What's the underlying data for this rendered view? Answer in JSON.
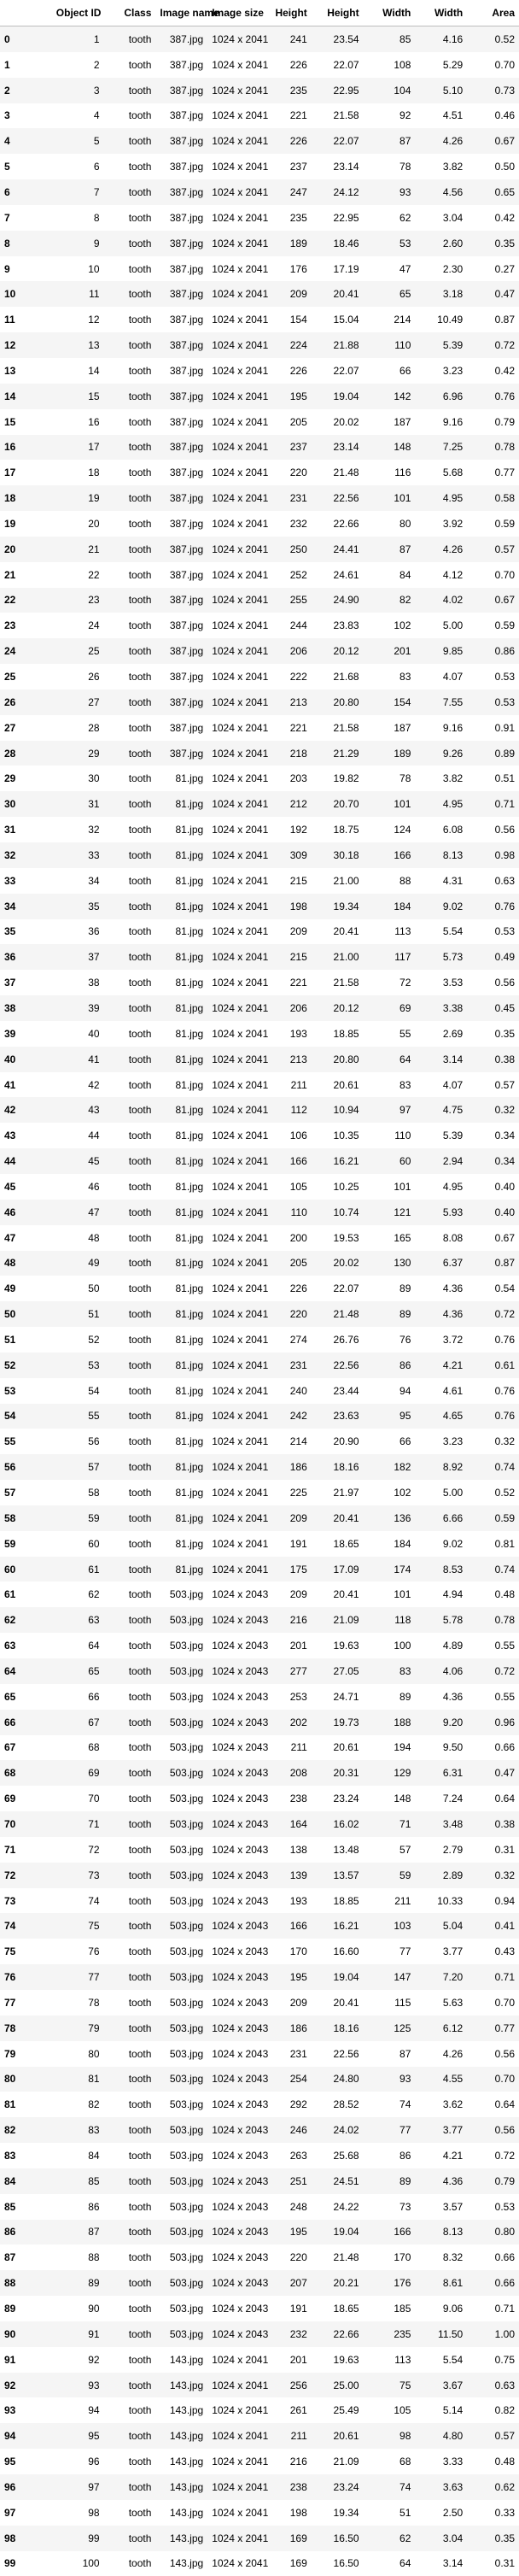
{
  "columns": [
    "",
    "Object ID",
    "Class",
    "Image name",
    "Image size",
    "Height",
    "Height",
    "Width",
    "Width",
    "Area"
  ],
  "rows": [
    [
      "0",
      "1",
      "tooth",
      "387.jpg",
      "1024 x 2041",
      "241",
      "23.54",
      "85",
      "4.16",
      "0.52"
    ],
    [
      "1",
      "2",
      "tooth",
      "387.jpg",
      "1024 x 2041",
      "226",
      "22.07",
      "108",
      "5.29",
      "0.70"
    ],
    [
      "2",
      "3",
      "tooth",
      "387.jpg",
      "1024 x 2041",
      "235",
      "22.95",
      "104",
      "5.10",
      "0.73"
    ],
    [
      "3",
      "4",
      "tooth",
      "387.jpg",
      "1024 x 2041",
      "221",
      "21.58",
      "92",
      "4.51",
      "0.46"
    ],
    [
      "4",
      "5",
      "tooth",
      "387.jpg",
      "1024 x 2041",
      "226",
      "22.07",
      "87",
      "4.26",
      "0.67"
    ],
    [
      "5",
      "6",
      "tooth",
      "387.jpg",
      "1024 x 2041",
      "237",
      "23.14",
      "78",
      "3.82",
      "0.50"
    ],
    [
      "6",
      "7",
      "tooth",
      "387.jpg",
      "1024 x 2041",
      "247",
      "24.12",
      "93",
      "4.56",
      "0.65"
    ],
    [
      "7",
      "8",
      "tooth",
      "387.jpg",
      "1024 x 2041",
      "235",
      "22.95",
      "62",
      "3.04",
      "0.42"
    ],
    [
      "8",
      "9",
      "tooth",
      "387.jpg",
      "1024 x 2041",
      "189",
      "18.46",
      "53",
      "2.60",
      "0.35"
    ],
    [
      "9",
      "10",
      "tooth",
      "387.jpg",
      "1024 x 2041",
      "176",
      "17.19",
      "47",
      "2.30",
      "0.27"
    ],
    [
      "10",
      "11",
      "tooth",
      "387.jpg",
      "1024 x 2041",
      "209",
      "20.41",
      "65",
      "3.18",
      "0.47"
    ],
    [
      "11",
      "12",
      "tooth",
      "387.jpg",
      "1024 x 2041",
      "154",
      "15.04",
      "214",
      "10.49",
      "0.87"
    ],
    [
      "12",
      "13",
      "tooth",
      "387.jpg",
      "1024 x 2041",
      "224",
      "21.88",
      "110",
      "5.39",
      "0.72"
    ],
    [
      "13",
      "14",
      "tooth",
      "387.jpg",
      "1024 x 2041",
      "226",
      "22.07",
      "66",
      "3.23",
      "0.42"
    ],
    [
      "14",
      "15",
      "tooth",
      "387.jpg",
      "1024 x 2041",
      "195",
      "19.04",
      "142",
      "6.96",
      "0.76"
    ],
    [
      "15",
      "16",
      "tooth",
      "387.jpg",
      "1024 x 2041",
      "205",
      "20.02",
      "187",
      "9.16",
      "0.79"
    ],
    [
      "16",
      "17",
      "tooth",
      "387.jpg",
      "1024 x 2041",
      "237",
      "23.14",
      "148",
      "7.25",
      "0.78"
    ],
    [
      "17",
      "18",
      "tooth",
      "387.jpg",
      "1024 x 2041",
      "220",
      "21.48",
      "116",
      "5.68",
      "0.77"
    ],
    [
      "18",
      "19",
      "tooth",
      "387.jpg",
      "1024 x 2041",
      "231",
      "22.56",
      "101",
      "4.95",
      "0.58"
    ],
    [
      "19",
      "20",
      "tooth",
      "387.jpg",
      "1024 x 2041",
      "232",
      "22.66",
      "80",
      "3.92",
      "0.59"
    ],
    [
      "20",
      "21",
      "tooth",
      "387.jpg",
      "1024 x 2041",
      "250",
      "24.41",
      "87",
      "4.26",
      "0.57"
    ],
    [
      "21",
      "22",
      "tooth",
      "387.jpg",
      "1024 x 2041",
      "252",
      "24.61",
      "84",
      "4.12",
      "0.70"
    ],
    [
      "22",
      "23",
      "tooth",
      "387.jpg",
      "1024 x 2041",
      "255",
      "24.90",
      "82",
      "4.02",
      "0.67"
    ],
    [
      "23",
      "24",
      "tooth",
      "387.jpg",
      "1024 x 2041",
      "244",
      "23.83",
      "102",
      "5.00",
      "0.59"
    ],
    [
      "24",
      "25",
      "tooth",
      "387.jpg",
      "1024 x 2041",
      "206",
      "20.12",
      "201",
      "9.85",
      "0.86"
    ],
    [
      "25",
      "26",
      "tooth",
      "387.jpg",
      "1024 x 2041",
      "222",
      "21.68",
      "83",
      "4.07",
      "0.53"
    ],
    [
      "26",
      "27",
      "tooth",
      "387.jpg",
      "1024 x 2041",
      "213",
      "20.80",
      "154",
      "7.55",
      "0.53"
    ],
    [
      "27",
      "28",
      "tooth",
      "387.jpg",
      "1024 x 2041",
      "221",
      "21.58",
      "187",
      "9.16",
      "0.91"
    ],
    [
      "28",
      "29",
      "tooth",
      "387.jpg",
      "1024 x 2041",
      "218",
      "21.29",
      "189",
      "9.26",
      "0.89"
    ],
    [
      "29",
      "30",
      "tooth",
      "81.jpg",
      "1024 x 2041",
      "203",
      "19.82",
      "78",
      "3.82",
      "0.51"
    ],
    [
      "30",
      "31",
      "tooth",
      "81.jpg",
      "1024 x 2041",
      "212",
      "20.70",
      "101",
      "4.95",
      "0.71"
    ],
    [
      "31",
      "32",
      "tooth",
      "81.jpg",
      "1024 x 2041",
      "192",
      "18.75",
      "124",
      "6.08",
      "0.56"
    ],
    [
      "32",
      "33",
      "tooth",
      "81.jpg",
      "1024 x 2041",
      "309",
      "30.18",
      "166",
      "8.13",
      "0.98"
    ],
    [
      "33",
      "34",
      "tooth",
      "81.jpg",
      "1024 x 2041",
      "215",
      "21.00",
      "88",
      "4.31",
      "0.63"
    ],
    [
      "34",
      "35",
      "tooth",
      "81.jpg",
      "1024 x 2041",
      "198",
      "19.34",
      "184",
      "9.02",
      "0.76"
    ],
    [
      "35",
      "36",
      "tooth",
      "81.jpg",
      "1024 x 2041",
      "209",
      "20.41",
      "113",
      "5.54",
      "0.53"
    ],
    [
      "36",
      "37",
      "tooth",
      "81.jpg",
      "1024 x 2041",
      "215",
      "21.00",
      "117",
      "5.73",
      "0.49"
    ],
    [
      "37",
      "38",
      "tooth",
      "81.jpg",
      "1024 x 2041",
      "221",
      "21.58",
      "72",
      "3.53",
      "0.56"
    ],
    [
      "38",
      "39",
      "tooth",
      "81.jpg",
      "1024 x 2041",
      "206",
      "20.12",
      "69",
      "3.38",
      "0.45"
    ],
    [
      "39",
      "40",
      "tooth",
      "81.jpg",
      "1024 x 2041",
      "193",
      "18.85",
      "55",
      "2.69",
      "0.35"
    ],
    [
      "40",
      "41",
      "tooth",
      "81.jpg",
      "1024 x 2041",
      "213",
      "20.80",
      "64",
      "3.14",
      "0.38"
    ],
    [
      "41",
      "42",
      "tooth",
      "81.jpg",
      "1024 x 2041",
      "211",
      "20.61",
      "83",
      "4.07",
      "0.57"
    ],
    [
      "42",
      "43",
      "tooth",
      "81.jpg",
      "1024 x 2041",
      "112",
      "10.94",
      "97",
      "4.75",
      "0.32"
    ],
    [
      "43",
      "44",
      "tooth",
      "81.jpg",
      "1024 x 2041",
      "106",
      "10.35",
      "110",
      "5.39",
      "0.34"
    ],
    [
      "44",
      "45",
      "tooth",
      "81.jpg",
      "1024 x 2041",
      "166",
      "16.21",
      "60",
      "2.94",
      "0.34"
    ],
    [
      "45",
      "46",
      "tooth",
      "81.jpg",
      "1024 x 2041",
      "105",
      "10.25",
      "101",
      "4.95",
      "0.40"
    ],
    [
      "46",
      "47",
      "tooth",
      "81.jpg",
      "1024 x 2041",
      "110",
      "10.74",
      "121",
      "5.93",
      "0.40"
    ],
    [
      "47",
      "48",
      "tooth",
      "81.jpg",
      "1024 x 2041",
      "200",
      "19.53",
      "165",
      "8.08",
      "0.67"
    ],
    [
      "48",
      "49",
      "tooth",
      "81.jpg",
      "1024 x 2041",
      "205",
      "20.02",
      "130",
      "6.37",
      "0.87"
    ],
    [
      "49",
      "50",
      "tooth",
      "81.jpg",
      "1024 x 2041",
      "226",
      "22.07",
      "89",
      "4.36",
      "0.54"
    ],
    [
      "50",
      "51",
      "tooth",
      "81.jpg",
      "1024 x 2041",
      "220",
      "21.48",
      "89",
      "4.36",
      "0.72"
    ],
    [
      "51",
      "52",
      "tooth",
      "81.jpg",
      "1024 x 2041",
      "274",
      "26.76",
      "76",
      "3.72",
      "0.76"
    ],
    [
      "52",
      "53",
      "tooth",
      "81.jpg",
      "1024 x 2041",
      "231",
      "22.56",
      "86",
      "4.21",
      "0.61"
    ],
    [
      "53",
      "54",
      "tooth",
      "81.jpg",
      "1024 x 2041",
      "240",
      "23.44",
      "94",
      "4.61",
      "0.76"
    ],
    [
      "54",
      "55",
      "tooth",
      "81.jpg",
      "1024 x 2041",
      "242",
      "23.63",
      "95",
      "4.65",
      "0.76"
    ],
    [
      "55",
      "56",
      "tooth",
      "81.jpg",
      "1024 x 2041",
      "214",
      "20.90",
      "66",
      "3.23",
      "0.32"
    ],
    [
      "56",
      "57",
      "tooth",
      "81.jpg",
      "1024 x 2041",
      "186",
      "18.16",
      "182",
      "8.92",
      "0.74"
    ],
    [
      "57",
      "58",
      "tooth",
      "81.jpg",
      "1024 x 2041",
      "225",
      "21.97",
      "102",
      "5.00",
      "0.52"
    ],
    [
      "58",
      "59",
      "tooth",
      "81.jpg",
      "1024 x 2041",
      "209",
      "20.41",
      "136",
      "6.66",
      "0.59"
    ],
    [
      "59",
      "60",
      "tooth",
      "81.jpg",
      "1024 x 2041",
      "191",
      "18.65",
      "184",
      "9.02",
      "0.81"
    ],
    [
      "60",
      "61",
      "tooth",
      "81.jpg",
      "1024 x 2041",
      "175",
      "17.09",
      "174",
      "8.53",
      "0.74"
    ],
    [
      "61",
      "62",
      "tooth",
      "503.jpg",
      "1024 x 2043",
      "209",
      "20.41",
      "101",
      "4.94",
      "0.48"
    ],
    [
      "62",
      "63",
      "tooth",
      "503.jpg",
      "1024 x 2043",
      "216",
      "21.09",
      "118",
      "5.78",
      "0.78"
    ],
    [
      "63",
      "64",
      "tooth",
      "503.jpg",
      "1024 x 2043",
      "201",
      "19.63",
      "100",
      "4.89",
      "0.55"
    ],
    [
      "64",
      "65",
      "tooth",
      "503.jpg",
      "1024 x 2043",
      "277",
      "27.05",
      "83",
      "4.06",
      "0.72"
    ],
    [
      "65",
      "66",
      "tooth",
      "503.jpg",
      "1024 x 2043",
      "253",
      "24.71",
      "89",
      "4.36",
      "0.55"
    ],
    [
      "66",
      "67",
      "tooth",
      "503.jpg",
      "1024 x 2043",
      "202",
      "19.73",
      "188",
      "9.20",
      "0.96"
    ],
    [
      "67",
      "68",
      "tooth",
      "503.jpg",
      "1024 x 2043",
      "211",
      "20.61",
      "194",
      "9.50",
      "0.66"
    ],
    [
      "68",
      "69",
      "tooth",
      "503.jpg",
      "1024 x 2043",
      "208",
      "20.31",
      "129",
      "6.31",
      "0.47"
    ],
    [
      "69",
      "70",
      "tooth",
      "503.jpg",
      "1024 x 2043",
      "238",
      "23.24",
      "148",
      "7.24",
      "0.64"
    ],
    [
      "70",
      "71",
      "tooth",
      "503.jpg",
      "1024 x 2043",
      "164",
      "16.02",
      "71",
      "3.48",
      "0.38"
    ],
    [
      "71",
      "72",
      "tooth",
      "503.jpg",
      "1024 x 2043",
      "138",
      "13.48",
      "57",
      "2.79",
      "0.31"
    ],
    [
      "72",
      "73",
      "tooth",
      "503.jpg",
      "1024 x 2043",
      "139",
      "13.57",
      "59",
      "2.89",
      "0.32"
    ],
    [
      "73",
      "74",
      "tooth",
      "503.jpg",
      "1024 x 2043",
      "193",
      "18.85",
      "211",
      "10.33",
      "0.94"
    ],
    [
      "74",
      "75",
      "tooth",
      "503.jpg",
      "1024 x 2043",
      "166",
      "16.21",
      "103",
      "5.04",
      "0.41"
    ],
    [
      "75",
      "76",
      "tooth",
      "503.jpg",
      "1024 x 2043",
      "170",
      "16.60",
      "77",
      "3.77",
      "0.43"
    ],
    [
      "76",
      "77",
      "tooth",
      "503.jpg",
      "1024 x 2043",
      "195",
      "19.04",
      "147",
      "7.20",
      "0.71"
    ],
    [
      "77",
      "78",
      "tooth",
      "503.jpg",
      "1024 x 2043",
      "209",
      "20.41",
      "115",
      "5.63",
      "0.70"
    ],
    [
      "78",
      "79",
      "tooth",
      "503.jpg",
      "1024 x 2043",
      "186",
      "18.16",
      "125",
      "6.12",
      "0.77"
    ],
    [
      "79",
      "80",
      "tooth",
      "503.jpg",
      "1024 x 2043",
      "231",
      "22.56",
      "87",
      "4.26",
      "0.56"
    ],
    [
      "80",
      "81",
      "tooth",
      "503.jpg",
      "1024 x 2043",
      "254",
      "24.80",
      "93",
      "4.55",
      "0.70"
    ],
    [
      "81",
      "82",
      "tooth",
      "503.jpg",
      "1024 x 2043",
      "292",
      "28.52",
      "74",
      "3.62",
      "0.64"
    ],
    [
      "82",
      "83",
      "tooth",
      "503.jpg",
      "1024 x 2043",
      "246",
      "24.02",
      "77",
      "3.77",
      "0.56"
    ],
    [
      "83",
      "84",
      "tooth",
      "503.jpg",
      "1024 x 2043",
      "263",
      "25.68",
      "86",
      "4.21",
      "0.72"
    ],
    [
      "84",
      "85",
      "tooth",
      "503.jpg",
      "1024 x 2043",
      "251",
      "24.51",
      "89",
      "4.36",
      "0.79"
    ],
    [
      "85",
      "86",
      "tooth",
      "503.jpg",
      "1024 x 2043",
      "248",
      "24.22",
      "73",
      "3.57",
      "0.53"
    ],
    [
      "86",
      "87",
      "tooth",
      "503.jpg",
      "1024 x 2043",
      "195",
      "19.04",
      "166",
      "8.13",
      "0.80"
    ],
    [
      "87",
      "88",
      "tooth",
      "503.jpg",
      "1024 x 2043",
      "220",
      "21.48",
      "170",
      "8.32",
      "0.66"
    ],
    [
      "88",
      "89",
      "tooth",
      "503.jpg",
      "1024 x 2043",
      "207",
      "20.21",
      "176",
      "8.61",
      "0.66"
    ],
    [
      "89",
      "90",
      "tooth",
      "503.jpg",
      "1024 x 2043",
      "191",
      "18.65",
      "185",
      "9.06",
      "0.71"
    ],
    [
      "90",
      "91",
      "tooth",
      "503.jpg",
      "1024 x 2043",
      "232",
      "22.66",
      "235",
      "11.50",
      "1.00"
    ],
    [
      "91",
      "92",
      "tooth",
      "143.jpg",
      "1024 x 2041",
      "201",
      "19.63",
      "113",
      "5.54",
      "0.75"
    ],
    [
      "92",
      "93",
      "tooth",
      "143.jpg",
      "1024 x 2041",
      "256",
      "25.00",
      "75",
      "3.67",
      "0.63"
    ],
    [
      "93",
      "94",
      "tooth",
      "143.jpg",
      "1024 x 2041",
      "261",
      "25.49",
      "105",
      "5.14",
      "0.82"
    ],
    [
      "94",
      "95",
      "tooth",
      "143.jpg",
      "1024 x 2041",
      "211",
      "20.61",
      "98",
      "4.80",
      "0.57"
    ],
    [
      "95",
      "96",
      "tooth",
      "143.jpg",
      "1024 x 2041",
      "216",
      "21.09",
      "68",
      "3.33",
      "0.48"
    ],
    [
      "96",
      "97",
      "tooth",
      "143.jpg",
      "1024 x 2041",
      "238",
      "23.24",
      "74",
      "3.63",
      "0.62"
    ],
    [
      "97",
      "98",
      "tooth",
      "143.jpg",
      "1024 x 2041",
      "198",
      "19.34",
      "51",
      "2.50",
      "0.33"
    ],
    [
      "98",
      "99",
      "tooth",
      "143.jpg",
      "1024 x 2041",
      "169",
      "16.50",
      "62",
      "3.04",
      "0.35"
    ],
    [
      "99",
      "100",
      "tooth",
      "143.jpg",
      "1024 x 2041",
      "169",
      "16.50",
      "64",
      "3.14",
      "0.31"
    ]
  ]
}
